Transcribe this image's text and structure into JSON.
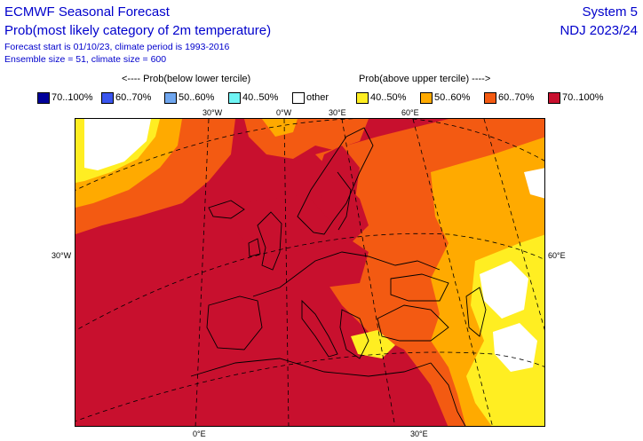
{
  "header": {
    "title_line1": "ECMWF Seasonal Forecast",
    "title_line2": "Prob(most likely category of 2m temperature)",
    "info_line1": "Forecast start is 01/10/23, climate period is 1993-2016",
    "info_line2": "Ensemble size = 51, climate size = 600",
    "system": "System 5",
    "season": "NDJ 2023/24"
  },
  "legend": {
    "below_heading": "<---- Prob(below lower tercile)",
    "above_heading": "Prob(above upper tercile) ---->",
    "items": [
      {
        "label": "70..100%",
        "color": "#00009a"
      },
      {
        "label": "60..70%",
        "color": "#3a55ee"
      },
      {
        "label": "50..60%",
        "color": "#6fa6ee"
      },
      {
        "label": "40..50%",
        "color": "#6ff4f4"
      },
      {
        "label": "other",
        "color": "#ffffff"
      },
      {
        "label": "40..50%",
        "color": "#ffee22"
      },
      {
        "label": "50..60%",
        "color": "#ffaa00"
      },
      {
        "label": "60..70%",
        "color": "#f35a12"
      },
      {
        "label": "70..100%",
        "color": "#c8102e"
      }
    ]
  },
  "map": {
    "grid_labels": {
      "top_30w": "30°W",
      "top_0w": "0°W",
      "top_30e": "30°E",
      "top_60e": "60°E",
      "left_30w": "30°W",
      "right_60e": "60°E",
      "bottom_0e": "0°E",
      "bottom_30e": "30°E"
    }
  }
}
